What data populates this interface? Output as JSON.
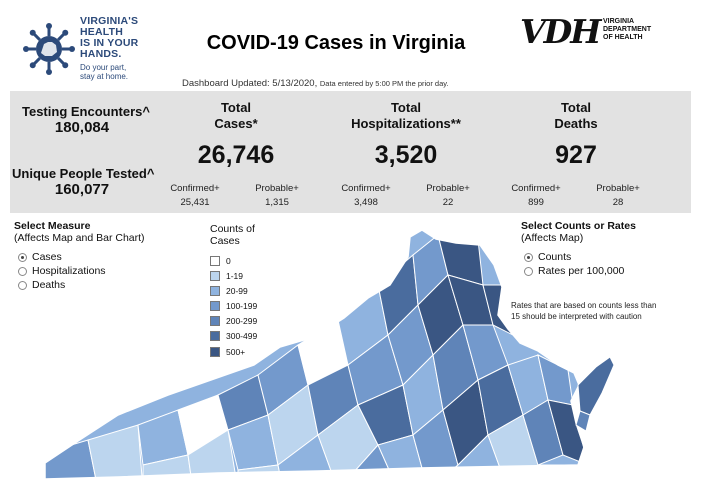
{
  "header": {
    "title": "COVID-19 Cases in Virginia",
    "left_logo_lines": [
      "VIRGINIA'S",
      "HEALTH",
      "IS IN YOUR",
      "HANDS."
    ],
    "left_logo_sub": [
      "Do your part,",
      "stay at home."
    ],
    "right_logo_mark": "VDH",
    "right_logo_lines": [
      "VIRGINIA",
      "DEPARTMENT",
      "OF HEALTH"
    ],
    "updated": "Dashboard Updated: 5/13/2020,",
    "updated_note": "Data entered by 5:00 PM the prior day."
  },
  "stats": {
    "testing_label": "Testing Encounters^",
    "testing_value": "180,084",
    "unique_label": "Unique People Tested^",
    "unique_value": "160,077",
    "cases": {
      "label1": "Total",
      "label2": "Cases*",
      "value": "26,746",
      "confirmed_label": "Confirmed+",
      "confirmed": "25,431",
      "probable_label": "Probable+",
      "probable": "1,315"
    },
    "hosp": {
      "label1": "Total",
      "label2": "Hospitalizations**",
      "value": "3,520",
      "confirmed_label": "Confirmed+",
      "confirmed": "3,498",
      "probable_label": "Probable+",
      "probable": "22"
    },
    "deaths": {
      "label1": "Total",
      "label2": "Deaths",
      "value": "927",
      "confirmed_label": "Confirmed+",
      "confirmed": "899",
      "probable_label": "Probable+",
      "probable": "28"
    }
  },
  "measure": {
    "title": "Select Measure",
    "subtitle": "(Affects Map and Bar Chart)",
    "options": [
      "Cases",
      "Hospitalizations",
      "Deaths"
    ],
    "selected": "Cases"
  },
  "counts_rates": {
    "title": "Select Counts or Rates",
    "subtitle": "(Affects Map)",
    "options": [
      "Counts",
      "Rates per 100,000"
    ],
    "selected": "Counts"
  },
  "legend": {
    "title_line1": "Counts of",
    "title_line2": "Cases",
    "bins": [
      {
        "label": "0",
        "color": "#ffffff"
      },
      {
        "label": "1-19",
        "color": "#bcd5ee"
      },
      {
        "label": "20-99",
        "color": "#8fb3df"
      },
      {
        "label": "100-199",
        "color": "#7399cc"
      },
      {
        "label": "200-299",
        "color": "#5f84b8"
      },
      {
        "label": "300-499",
        "color": "#4a6c9e"
      },
      {
        "label": "500+",
        "color": "#3a5683"
      }
    ]
  },
  "note": "Rates that are based on counts less than 15 should be interpreted with caution",
  "colors": {
    "panel": "#e2e2e2",
    "logo_blue": "#2c4a7a"
  }
}
